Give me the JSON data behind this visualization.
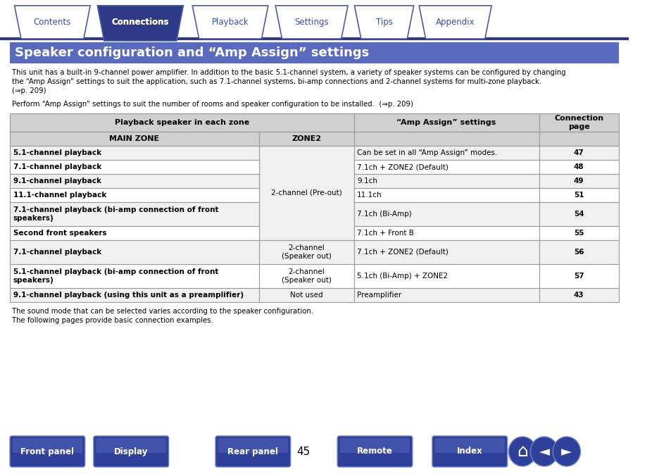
{
  "bg_color": "#ffffff",
  "tabs": [
    "Contents",
    "Connections",
    "Playback",
    "Settings",
    "Tips",
    "Appendix"
  ],
  "active_tab": "Connections",
  "active_tab_color": "#2e3a87",
  "inactive_tab_color": "#ffffff",
  "inactive_tab_text_color": "#3a4db7",
  "active_tab_text_color": "#ffffff",
  "tab_border_color": "#4a5aaf",
  "nav_line_color": "#2e3a87",
  "title_bg": "#5a6abf",
  "title_text": "Speaker configuration and “Amp Assign” settings",
  "title_text_color": "#ffffff",
  "body_lines": [
    "This unit has a built-in 9-channel power amplifier. In addition to the basic 5.1-channel system, a variety of speaker systems can be configured by changing",
    "the “Amp Assign” settings to suit the application, such as 7.1-channel systems, bi-amp connections and 2-channel systems for multi-zone playback.",
    "(⇒p. 209)"
  ],
  "body_line2": "Perform “Amp Assign” settings to suit the number of rooms and speaker configuration to be installed.  (⇒p. 209)",
  "table_header1": "Playback speaker in each zone",
  "table_col1": "MAIN ZONE",
  "table_col2": "ZONE2",
  "table_col3": "“Amp Assign” settings",
  "table_col4": "Connection\npage",
  "table_header_bg": "#d0d0d0",
  "table_subheader_bg": "#d0d0d0",
  "table_border_color": "#999999",
  "rows": [
    [
      "5.1-channel playback",
      "",
      "Can be set in all “Amp Assign” modes.",
      "47"
    ],
    [
      "7.1-channel playback",
      "",
      "7.1ch + ZONE2 (Default)",
      "48"
    ],
    [
      "9.1-channel playback",
      "",
      "9.1ch",
      "49"
    ],
    [
      "11.1-channel playback",
      "2-channel (Pre-out)",
      "11.1ch",
      "51"
    ],
    [
      "7.1-channel playback (bi-amp connection of front\nspeakers)",
      "",
      "7.1ch (Bi-Amp)",
      "54"
    ],
    [
      "Second front speakers",
      "",
      "7.1ch + Front B",
      "55"
    ],
    [
      "7.1-channel playback",
      "2-channel\n(Speaker out)",
      "7.1ch + ZONE2 (Default)",
      "56"
    ],
    [
      "5.1-channel playback (bi-amp connection of front\nspeakers)",
      "2-channel\n(Speaker out)",
      "5.1ch (Bi-Amp) + ZONE2",
      "57"
    ],
    [
      "9.1-channel playback (using this unit as a preamplifier)",
      "Not used",
      "Preamplifier",
      "43"
    ]
  ],
  "footer_text1": "The sound mode that can be selected varies according to the speaker configuration.",
  "footer_text2": "The following pages provide basic connection examples.",
  "page_number": "45",
  "nav_button_labels": [
    "Front panel",
    "Display",
    "Rear panel",
    "Remote",
    "Index"
  ],
  "nav_button_color": "#2e4099",
  "nav_button_text_color": "#ffffff"
}
